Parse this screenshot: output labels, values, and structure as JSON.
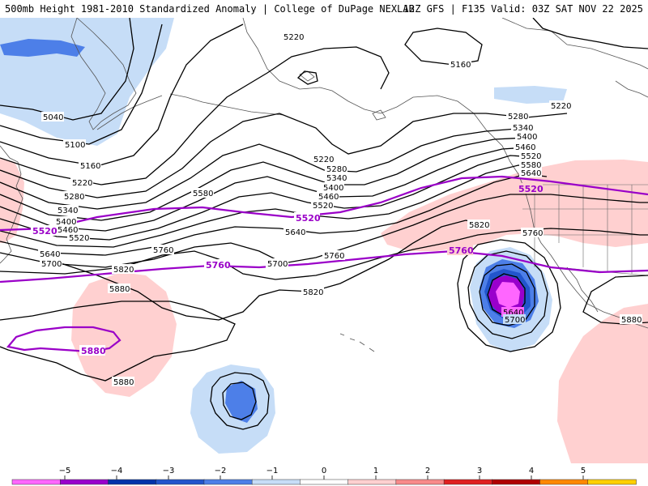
{
  "header": {
    "left_title": "500mb Height 1981-2010 Standardized Anomaly | College of DuPage NEXLAB",
    "right_title": "12Z GFS | F135 Valid: 03Z SAT NOV 22 2025"
  },
  "contour_labels": {
    "l5220_top": "5220",
    "l5160_top": "5160",
    "l5220_ne": "5220",
    "l5280_bc": "5280",
    "l5340_bc": "5340",
    "l5400_bc": "5400",
    "l5460_bc": "5460",
    "l5520_bc": "5520",
    "l5580_bc": "5580",
    "l5640_bc": "5640",
    "l5220_mid": "5220",
    "l5280_mid": "5280",
    "l5340_mid": "5340",
    "l5400_mid": "5400",
    "l5460_mid": "5460",
    "l5520_mid": "5520",
    "l5580_mid": "5580",
    "l5640_mid": "5640",
    "l5040_w": "5040",
    "l5100_w": "5100",
    "l5160_w": "5160",
    "l5220_w": "5220",
    "l5280_w": "5280",
    "l5340_w": "5340",
    "l5400_w": "5400",
    "l5460_w": "5460",
    "l5520_w": "5520",
    "l5640_w": "5640",
    "l5700_w": "5700",
    "l5760_mid": "5760",
    "l5700_mid": "5700",
    "l5760_e": "5760",
    "l5820_e": "5820",
    "l5760_ca": "5760",
    "l5820_w": "5820",
    "l5880_w": "5880",
    "l5820_mid": "5820",
    "l5880_s": "5880",
    "l5640_low": "5640",
    "l5700_low": "5700",
    "l5880_e": "5880"
  },
  "purple_labels": {
    "p5520_w": "5520",
    "p5520_mid": "5520",
    "p5520_e": "5520",
    "p5760_mid": "5760",
    "p5760_e": "5760",
    "p5880_w": "5880"
  },
  "legend": {
    "ticks": [
      "−5",
      "−4",
      "−3",
      "−2",
      "−1",
      "0",
      "1",
      "2",
      "3",
      "4",
      "5"
    ],
    "colors": [
      "#ff66ff",
      "#9900cc",
      "#0033aa",
      "#2255cc",
      "#4d7fe8",
      "#c6ddf7",
      "#ffffff",
      "#ffd0d0",
      "#f88a8a",
      "#e02020",
      "#b00000",
      "#ff8800",
      "#ffd000"
    ]
  }
}
